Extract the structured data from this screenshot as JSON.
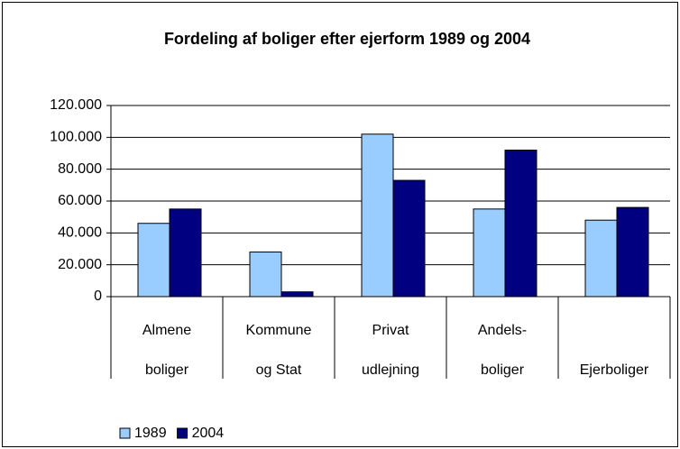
{
  "chart_data": {
    "type": "bar",
    "title": "Fordeling af boliger efter ejerform 1989 og 2004",
    "categories": [
      [
        "Almene",
        "boliger"
      ],
      [
        "Kommune",
        "og Stat"
      ],
      [
        "Privat",
        "udlejning"
      ],
      [
        "Andels-",
        "boliger"
      ],
      [
        "Ejerboliger"
      ]
    ],
    "series": [
      {
        "name": "1989",
        "color": "#99ccff",
        "values": [
          46000,
          28000,
          102000,
          55000,
          48000
        ]
      },
      {
        "name": "2004",
        "color": "#000080",
        "values": [
          55000,
          3000,
          73000,
          92000,
          56000
        ]
      }
    ],
    "ylim": [
      0,
      120000
    ],
    "yticks": [
      0,
      {
        "value": 20000,
        "label": "20.000"
      },
      {
        "value": 40000,
        "label": "40.000"
      },
      {
        "value": 60000,
        "label": "60.000"
      },
      {
        "value": 80000,
        "label": "80.000"
      },
      {
        "value": 100000,
        "label": "100.000"
      },
      {
        "value": 120000,
        "label": "120.000"
      }
    ],
    "grid": true,
    "legend": "bottom-left"
  }
}
